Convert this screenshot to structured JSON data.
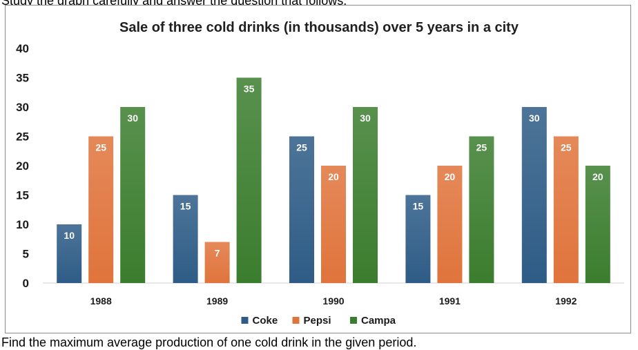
{
  "page_text": {
    "top": "Study the graph carefully and answer the question that follows.",
    "bottom": "Find the maximum average production of one cold drink in the given period."
  },
  "chart_data": {
    "type": "bar",
    "title": "Sale of three cold drinks (in thousands) over 5 years in a city",
    "categories": [
      "1988",
      "1989",
      "1990",
      "1991",
      "1992"
    ],
    "series": [
      {
        "name": "Coke",
        "values": [
          10,
          15,
          25,
          15,
          30
        ],
        "color": "#2e5c86"
      },
      {
        "name": "Pepsi",
        "values": [
          25,
          7,
          20,
          20,
          25
        ],
        "color": "#e0743c"
      },
      {
        "name": "Campa",
        "values": [
          30,
          35,
          30,
          25,
          20
        ],
        "color": "#3b7d2e"
      }
    ],
    "ylim": [
      0,
      40
    ],
    "yticks": [
      0,
      5,
      10,
      15,
      20,
      25,
      30,
      35,
      40
    ],
    "xlabel": "",
    "ylabel": "",
    "grid": false,
    "legend": "bottom",
    "data_labels": true
  }
}
